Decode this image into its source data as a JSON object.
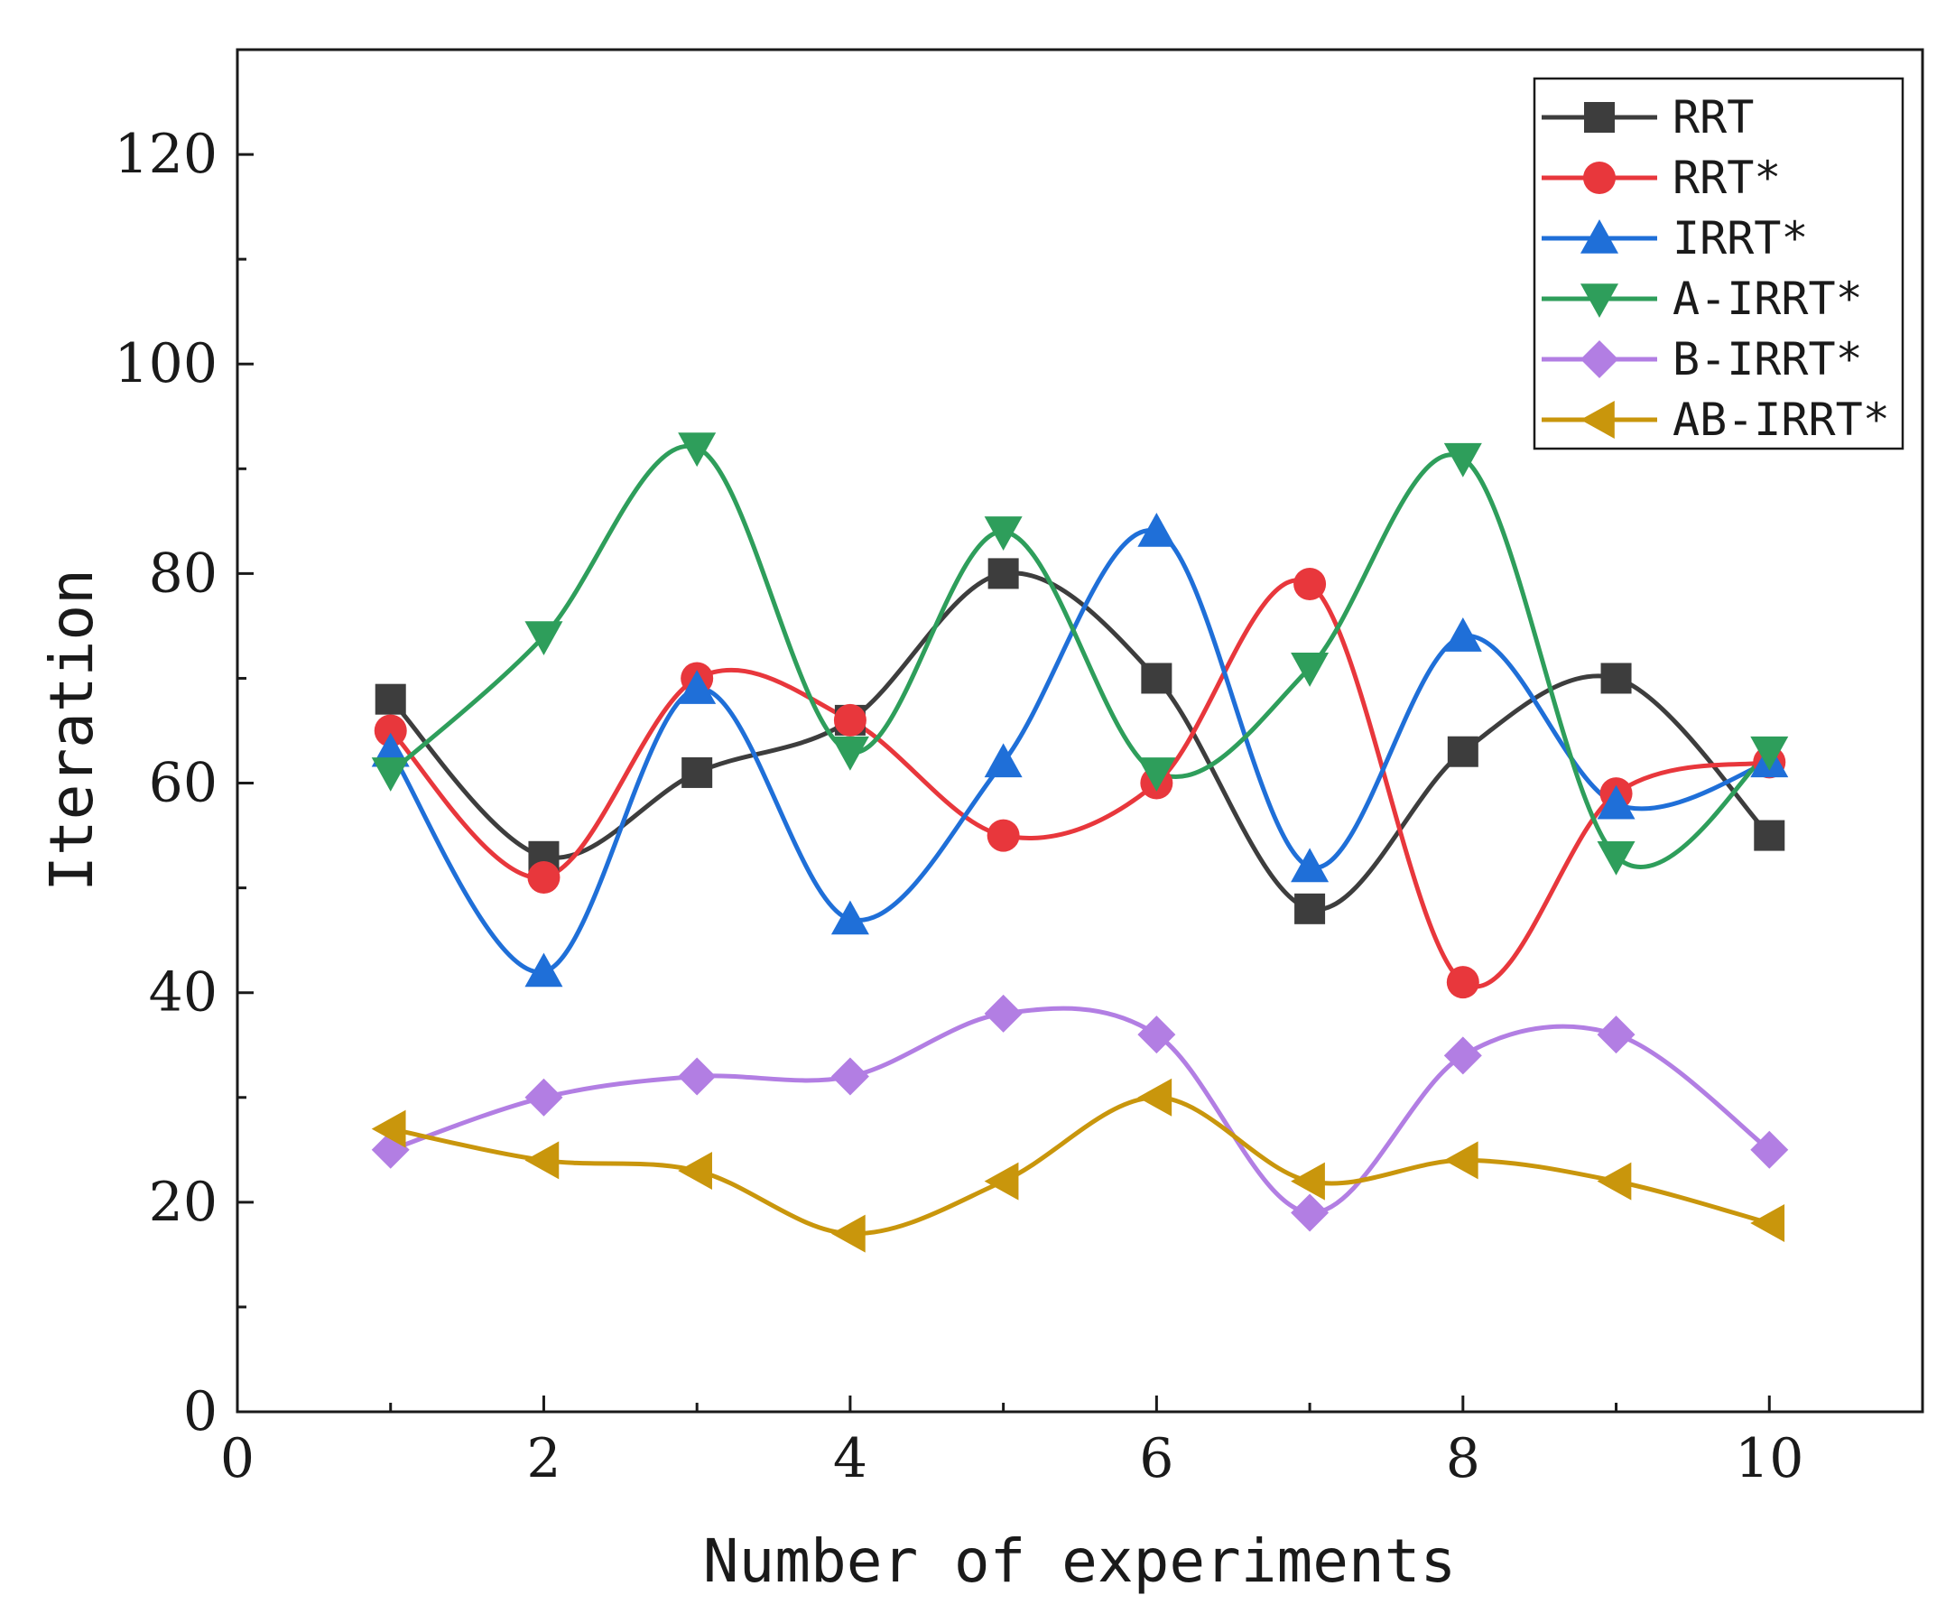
{
  "chart_data": {
    "type": "line",
    "title": "",
    "xlabel": "Number of experiments",
    "ylabel": "Iteration",
    "xlim": [
      0,
      11
    ],
    "ylim": [
      0,
      130
    ],
    "xticks": [
      0,
      2,
      4,
      6,
      8,
      10
    ],
    "yticks": [
      0,
      20,
      40,
      60,
      80,
      100,
      120
    ],
    "x": [
      1,
      2,
      3,
      4,
      5,
      6,
      7,
      8,
      9,
      10
    ],
    "legend_position": "top-right",
    "smooth": true,
    "series": [
      {
        "name": "RRT",
        "marker": "square",
        "color": "#3d3d3d",
        "values": [
          68,
          53,
          61,
          66,
          80,
          70,
          48,
          63,
          70,
          55
        ]
      },
      {
        "name": "RRT*",
        "marker": "circle",
        "color": "#e8373c",
        "values": [
          65,
          51,
          70,
          66,
          55,
          60,
          79,
          41,
          59,
          62
        ]
      },
      {
        "name": "IRRT*",
        "marker": "triangle-up",
        "color": "#1f6fd8",
        "values": [
          63,
          42,
          69,
          47,
          62,
          84,
          52,
          74,
          58,
          62
        ]
      },
      {
        "name": "A-IRRT*",
        "marker": "triangle-down",
        "color": "#2e9e5b",
        "values": [
          61,
          74,
          92,
          63,
          84,
          61,
          71,
          91,
          53,
          63
        ]
      },
      {
        "name": "B-IRRT*",
        "marker": "diamond",
        "color": "#b27ee3",
        "values": [
          25,
          30,
          32,
          32,
          38,
          36,
          19,
          34,
          36,
          25
        ]
      },
      {
        "name": "AB-IRRT*",
        "marker": "triangle-left",
        "color": "#c9960c",
        "values": [
          27,
          24,
          23,
          17,
          22,
          30,
          22,
          24,
          22,
          18
        ]
      }
    ]
  }
}
